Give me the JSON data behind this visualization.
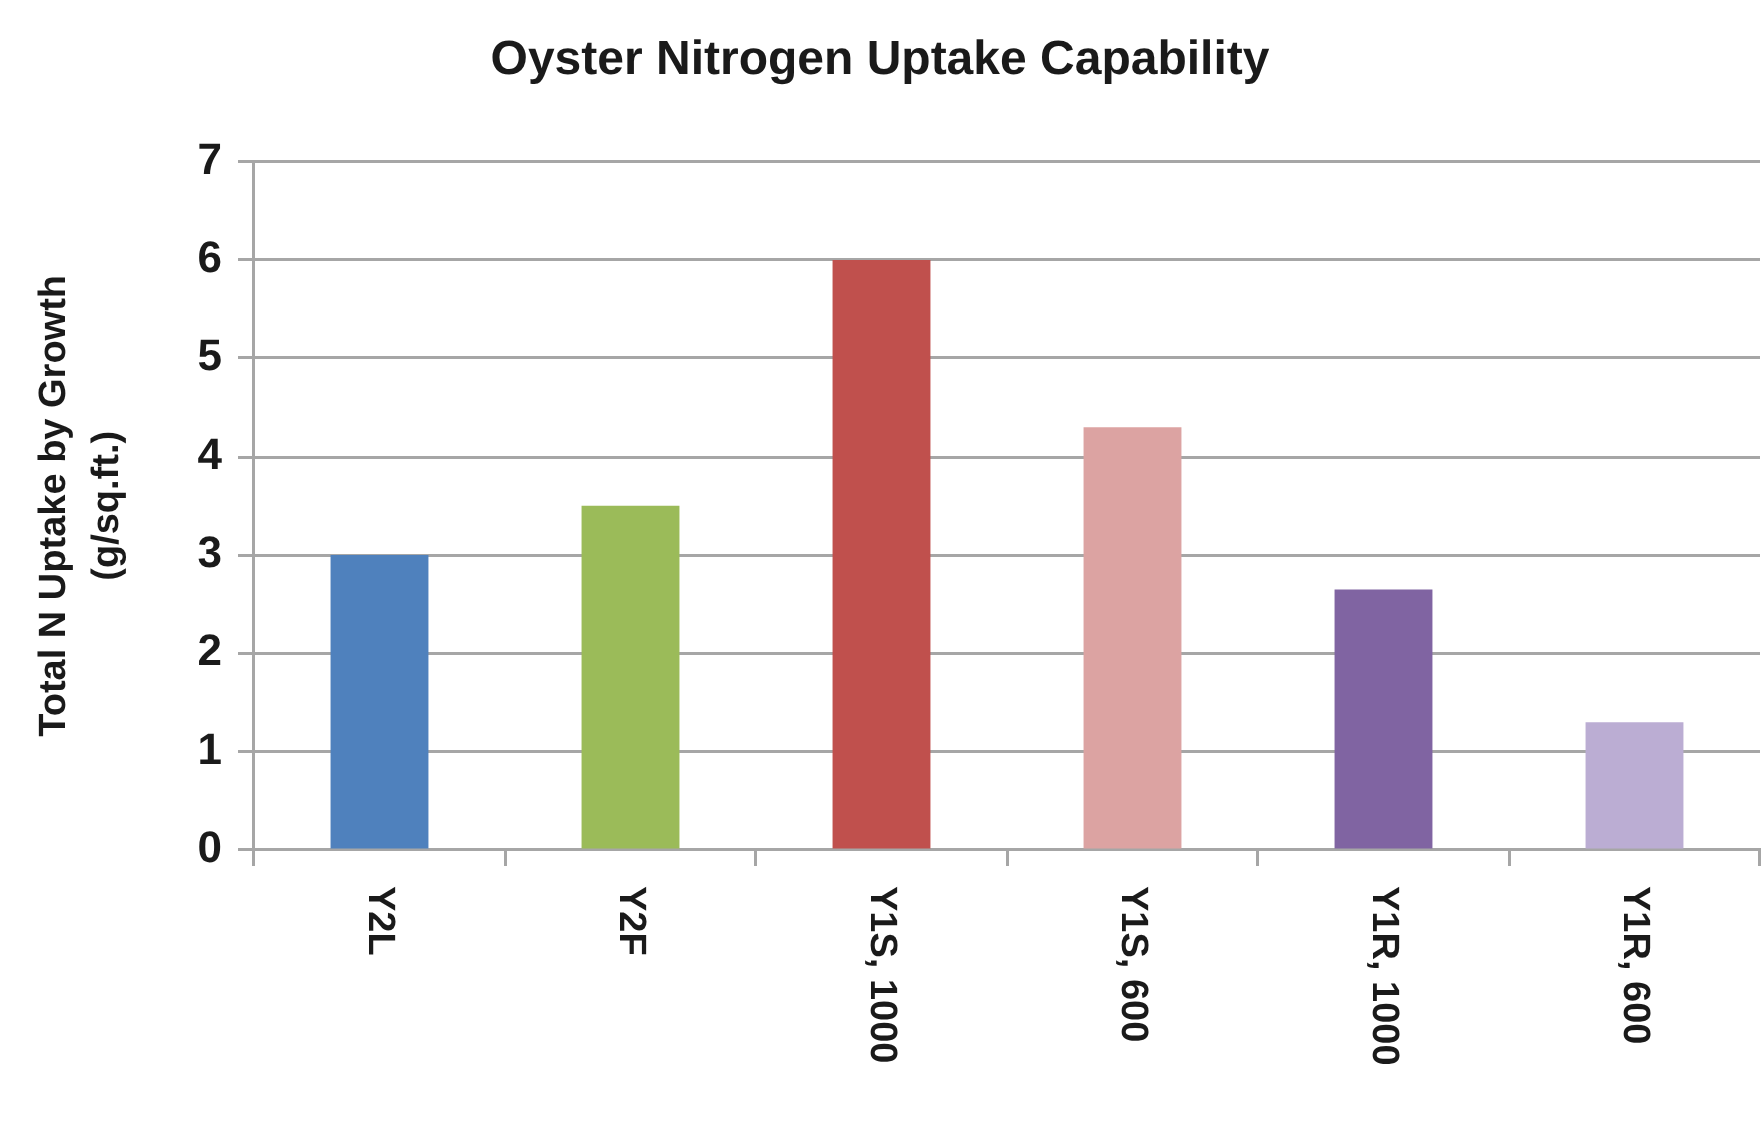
{
  "chart_data": {
    "type": "bar",
    "title": "Oyster Nitrogen Uptake Capability",
    "ylabel": "Total N Uptake by Growth\n(g/sq.ft.)",
    "categories": [
      "Y2L",
      "Y2F",
      "Y1S, 1000",
      "Y1S, 600",
      "Y1R, 1000",
      "Y1R, 600"
    ],
    "values": [
      3.0,
      3.5,
      6.0,
      4.3,
      2.65,
      1.3
    ],
    "colors": [
      "#4f81bd",
      "#9bbb59",
      "#c0504d",
      "#dca3a2",
      "#8064a2",
      "#bbadd3"
    ],
    "ylim": [
      0,
      7
    ],
    "yticks": [
      0,
      1,
      2,
      3,
      4,
      5,
      6,
      7
    ],
    "grid": "y"
  }
}
